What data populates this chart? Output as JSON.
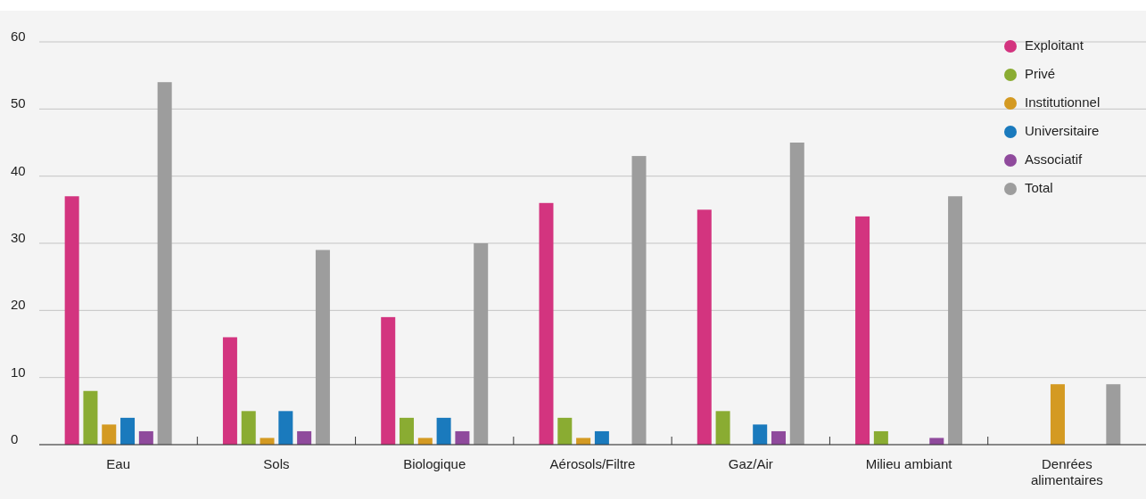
{
  "chart_data": {
    "type": "bar",
    "categories": [
      "Eau",
      "Sols",
      "Biologique",
      "Aérosols/Filtre",
      "Gaz/Air",
      "Milieu ambiant",
      "Denrées alimentaires"
    ],
    "series": [
      {
        "name": "Exploitant",
        "color": "#d3347f",
        "values": [
          37,
          16,
          19,
          36,
          35,
          34,
          null
        ]
      },
      {
        "name": "Privé",
        "color": "#8aac32",
        "values": [
          8,
          5,
          4,
          4,
          5,
          2,
          null
        ]
      },
      {
        "name": "Institutionnel",
        "color": "#d49a22",
        "values": [
          3,
          1,
          1,
          1,
          null,
          null,
          9
        ]
      },
      {
        "name": "Universitaire",
        "color": "#1a7abd",
        "values": [
          4,
          5,
          4,
          2,
          3,
          null,
          null
        ]
      },
      {
        "name": "Associatif",
        "color": "#8f4a9c",
        "values": [
          2,
          2,
          2,
          null,
          2,
          1,
          null
        ]
      },
      {
        "name": "Total",
        "color": "#9d9d9d",
        "values": [
          54,
          29,
          30,
          43,
          45,
          37,
          9
        ]
      }
    ],
    "ylim": [
      0,
      60
    ],
    "yticks": [
      0,
      10,
      20,
      30,
      40,
      50,
      60
    ],
    "grid": "y",
    "legend": "top right"
  }
}
